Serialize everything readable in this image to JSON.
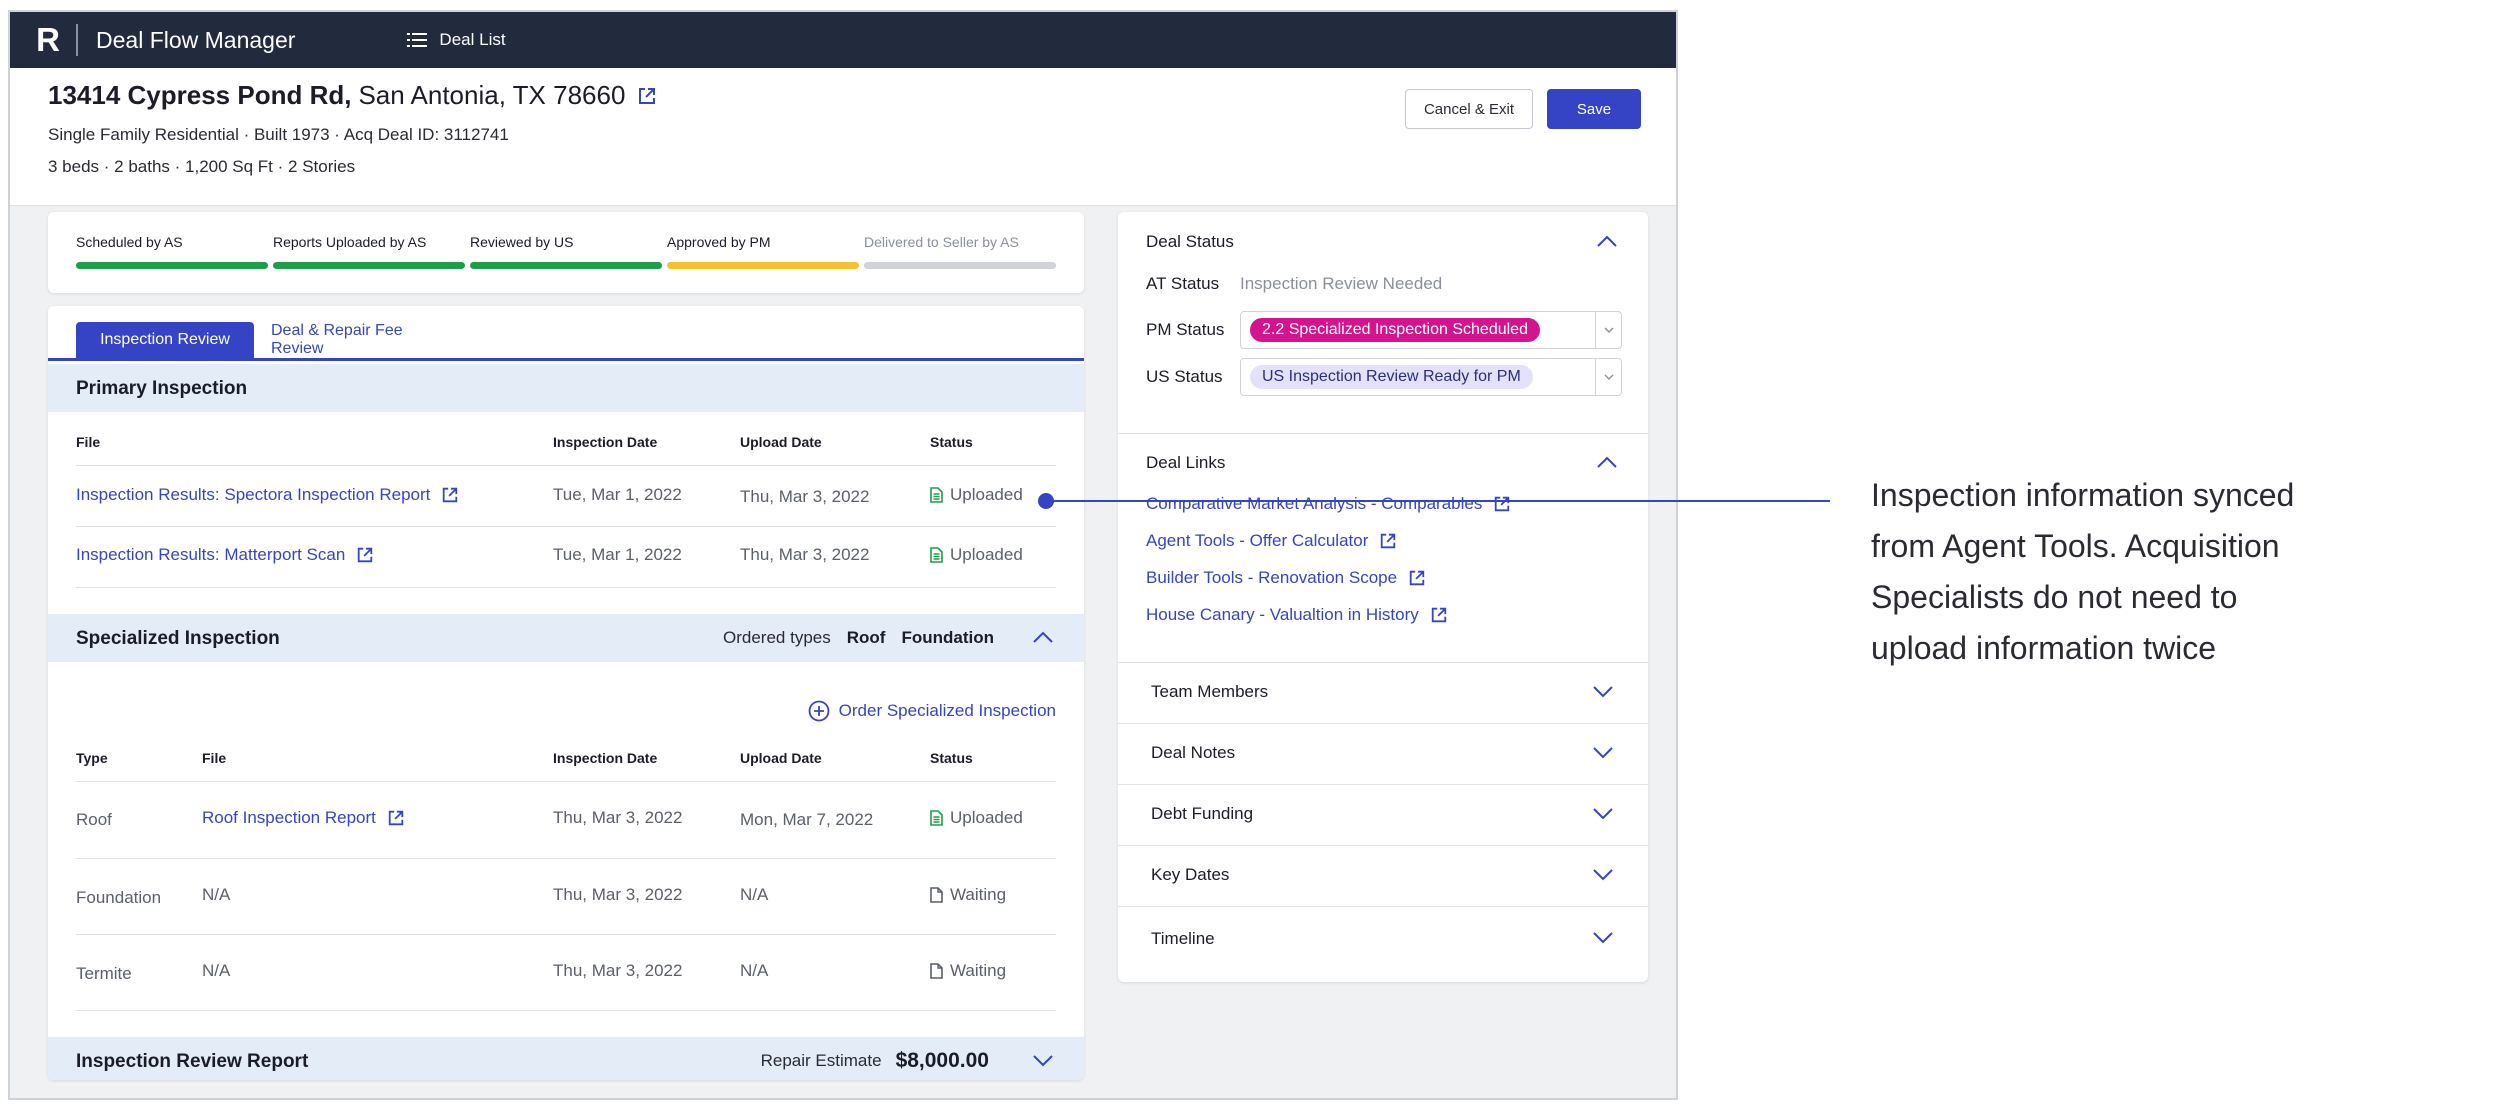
{
  "topbar": {
    "logo": "R",
    "app_title": "Deal Flow Manager",
    "nav_label": "Deal List"
  },
  "property": {
    "street": "13414 Cypress Pond Rd,",
    "city": "San Antonia, TX 78660",
    "line1": "Single Family Residential · Built 1973 · Acq Deal ID: 3112741",
    "line2": "3 beds · 2 baths · 1,200 Sq Ft  ·  2 Stories"
  },
  "actions": {
    "cancel_label": "Cancel & Exit",
    "save_label": "Save"
  },
  "progress": [
    {
      "label": "Scheduled by AS",
      "color": "#1e9e48",
      "done": true
    },
    {
      "label": "Reports Uploaded by AS",
      "color": "#1e9e48",
      "done": true
    },
    {
      "label": "Reviewed by US",
      "color": "#1e9e48",
      "done": true
    },
    {
      "label": "Approved by PM",
      "color": "#f2c230",
      "done": true
    },
    {
      "label": "Delivered to Seller by AS",
      "color": "#cfd2d6",
      "done": false
    }
  ],
  "tabs": {
    "inspection_review": "Inspection Review",
    "deal_repair": "Deal & Repair Fee Review"
  },
  "primary": {
    "title": "Primary Inspection",
    "headers": {
      "file": "File",
      "inspection_date": "Inspection Date",
      "upload_date": "Upload Date",
      "status": "Status"
    },
    "rows": [
      {
        "file": "Inspection Results: Spectora Inspection Report",
        "inspection_date": "Tue, Mar 1, 2022",
        "upload_date": "Thu, Mar 3, 2022",
        "status": "Uploaded"
      },
      {
        "file": "Inspection Results: Matterport Scan",
        "inspection_date": "Tue, Mar 1, 2022",
        "upload_date": "Thu, Mar 3, 2022",
        "status": "Uploaded"
      }
    ]
  },
  "specialized": {
    "title": "Specialized Inspection",
    "ordered_label": "Ordered types",
    "ordered_types": [
      "Roof",
      "Foundation"
    ],
    "order_link": "Order Specialized Inspection",
    "headers": {
      "type": "Type",
      "file": "File",
      "inspection_date": "Inspection Date",
      "upload_date": "Upload Date",
      "status": "Status"
    },
    "rows": [
      {
        "type": "Roof",
        "file": "Roof Inspection Report",
        "inspection_date": "Thu, Mar 3, 2022",
        "upload_date": "Mon, Mar 7, 2022",
        "status": "Uploaded"
      },
      {
        "type": "Foundation",
        "file": "N/A",
        "inspection_date": "Thu, Mar 3, 2022",
        "upload_date": "N/A",
        "status": "Waiting"
      },
      {
        "type": "Termite",
        "file": "N/A",
        "inspection_date": "Thu, Mar 3, 2022",
        "upload_date": "N/A",
        "status": "Waiting"
      }
    ]
  },
  "review_report": {
    "title": "Inspection Review Report",
    "repair_label": "Repair Estimate",
    "repair_value": "$8,000.00"
  },
  "deal_status": {
    "title": "Deal Status",
    "at_label": "AT Status",
    "at_value": "Inspection Review Needed",
    "pm_label": "PM Status",
    "pm_value": "2.2 Specialized Inspection Scheduled",
    "us_label": "US Status",
    "us_value": "US Inspection Review Ready for PM"
  },
  "deal_links": {
    "title": "Deal Links",
    "items": [
      "Comparative Market Analysis - Comparables",
      "Agent Tools - Offer Calculator",
      "Builder Tools - Renovation Scope",
      "House Canary - Valualtion in History"
    ]
  },
  "accordions": [
    "Team Members",
    "Deal Notes",
    "Debt Funding",
    "Key Dates",
    "Timeline"
  ],
  "annotation": "Inspection information synced from Agent Tools. Acquisition Specialists do not need to upload information twice",
  "colors": {
    "accent": "#3544c4",
    "topbar": "#222b3e",
    "pm_pill": "#d4138e",
    "us_pill": "#e4e2fb",
    "uploaded_icon": "#1e9e48"
  }
}
